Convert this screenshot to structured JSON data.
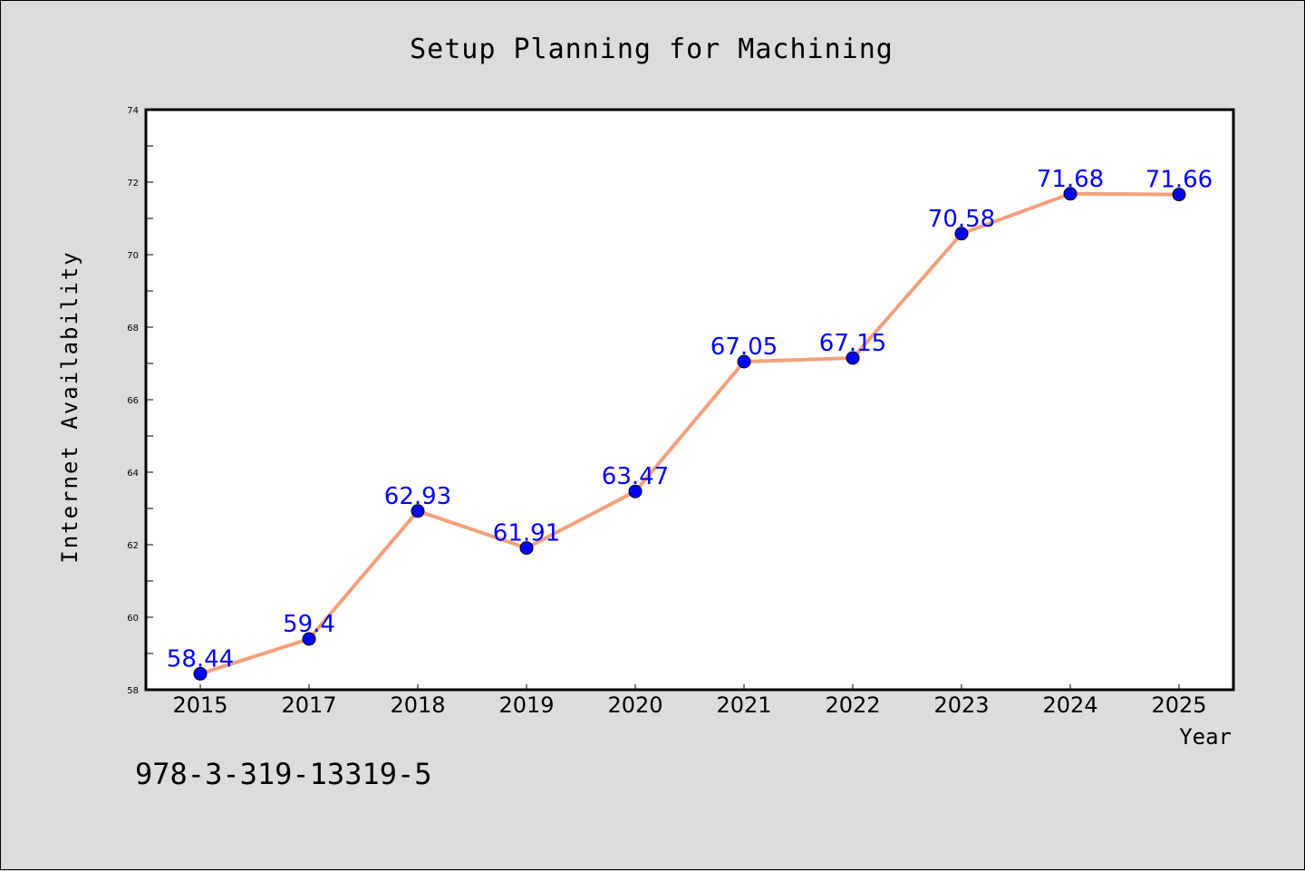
{
  "chart_data": {
    "type": "line",
    "title": "Setup Planning for Machining",
    "xlabel": "Year",
    "ylabel": "Internet Availability",
    "categories": [
      "2015",
      "2017",
      "2018",
      "2019",
      "2020",
      "2021",
      "2022",
      "2023",
      "2024",
      "2025"
    ],
    "series": [
      {
        "values": [
          58.44,
          59.4,
          62.93,
          61.91,
          63.47,
          67.05,
          67.15,
          70.58,
          71.68,
          71.66
        ],
        "labels": [
          "58.44",
          "59.4",
          "62.93",
          "61.91",
          "63.47",
          "67.05",
          "67.15",
          "70.58",
          "71.68",
          "71.66"
        ],
        "line_color": "#f4a07c",
        "marker_color": "#0000ff"
      }
    ],
    "ylim": [
      58,
      74
    ],
    "yticks": [
      "58",
      "60",
      "62",
      "64",
      "66",
      "68",
      "70",
      "72",
      "74"
    ],
    "grid": false,
    "legend": "none"
  },
  "annotation": "978-3-319-13319-5",
  "colors": {
    "background": "#dcdcdc",
    "plot_area": "#ffffff",
    "line": "#f4a07c",
    "marker": "#0000ff",
    "data_label": "#0000ff"
  }
}
